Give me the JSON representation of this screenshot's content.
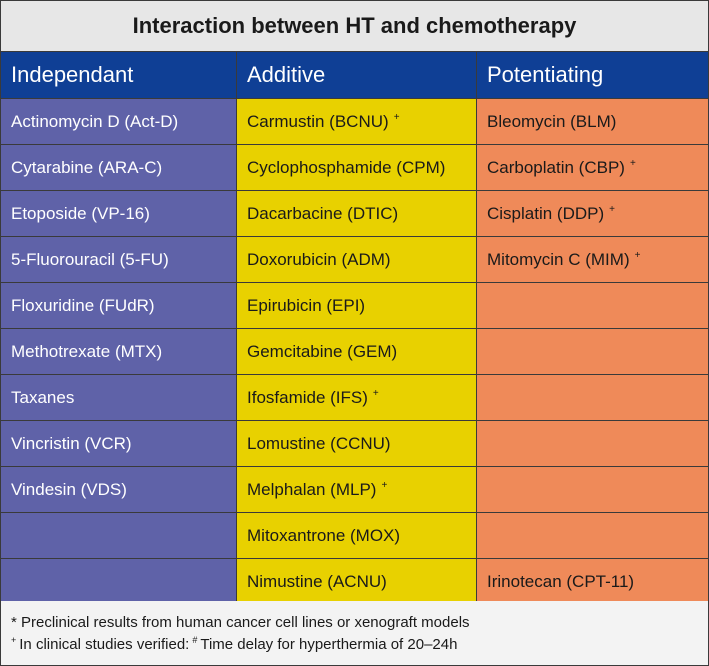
{
  "title": "Interaction between HT and chemotherapy",
  "headers": [
    "Independant",
    "Additive",
    "Potentiating"
  ],
  "colors": {
    "header_bg": "#0f3f95",
    "independant_bg": "#5f62a8",
    "additive_bg": "#e8d100",
    "potentiating_bg": "#ef8a59",
    "title_bg": "#e7e7e7"
  },
  "rows": [
    {
      "independant": "Actinomycin D (Act-D)",
      "additive": "Carmustin (BCNU)",
      "additive_mark": "+",
      "potentiating": "Bleomycin (BLM)",
      "potentiating_mark": ""
    },
    {
      "independant": "Cytarabine (ARA-C)",
      "additive": "Cyclophosphamide (CPM)",
      "additive_mark": "",
      "potentiating": "Carboplatin (CBP)",
      "potentiating_mark": "+"
    },
    {
      "independant": "Etoposide (VP-16)",
      "additive": "Dacarbacine (DTIC)",
      "additive_mark": "",
      "potentiating": "Cisplatin (DDP)",
      "potentiating_mark": "+"
    },
    {
      "independant": "5-Fluorouracil (5-FU)",
      "additive": "Doxorubicin (ADM)",
      "additive_mark": "",
      "potentiating": "Mitomycin C (MIM)",
      "potentiating_mark": "+"
    },
    {
      "independant": "Floxuridine (FUdR)",
      "additive": "Epirubicin (EPI)",
      "additive_mark": "",
      "potentiating": "",
      "potentiating_mark": ""
    },
    {
      "independant": "Methotrexate (MTX)",
      "additive": "Gemcitabine (GEM)",
      "additive_mark": "",
      "potentiating": "",
      "potentiating_mark": ""
    },
    {
      "independant": "Taxanes",
      "additive": "Ifosfamide (IFS)",
      "additive_mark": "+",
      "potentiating": "",
      "potentiating_mark": ""
    },
    {
      "independant": "Vincristin (VCR)",
      "additive": "Lomustine (CCNU)",
      "additive_mark": "",
      "potentiating": "",
      "potentiating_mark": ""
    },
    {
      "independant": "Vindesin (VDS)",
      "additive": "Melphalan (MLP)",
      "additive_mark": "+",
      "potentiating": "",
      "potentiating_mark": ""
    },
    {
      "independant": "",
      "additive": "Mitoxantrone (MOX)",
      "additive_mark": "",
      "potentiating": "",
      "potentiating_mark": ""
    },
    {
      "independant": "",
      "additive": "Nimustine (ACNU)",
      "additive_mark": "",
      "potentiating": "Irinotecan (CPT-11)",
      "potentiating_mark": ""
    }
  ],
  "footnotes": {
    "line1": "* Preclinical results from human cancer cell lines or xenograft models",
    "line2_mark": "+",
    "line2_text": "In clinical studies verified:",
    "line2_mark2": "#",
    "line2_text2": "Time delay for hyperthermia of 20–24h"
  }
}
